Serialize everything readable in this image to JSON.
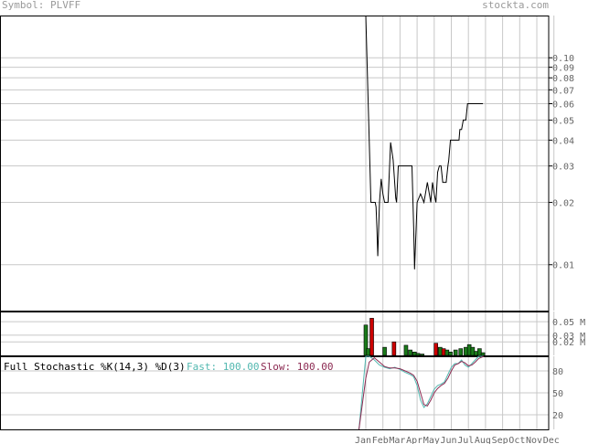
{
  "header": {
    "symbol_text": "Symbol: PLVFF",
    "site_text": "stockta.com"
  },
  "stochastic": {
    "title": "Full Stochastic %K(14,3) %D(3)",
    "fast_text": "Fast: 100.00",
    "slow_text": "Slow: 100.00"
  },
  "colors": {
    "price_line": "#000000",
    "grid": "#c8c8c8",
    "volume_up": "#1a7a1a",
    "volume_down": "#cc0000",
    "fast_line": "#52b8b0",
    "slow_line": "#8c2a52",
    "axis_text": "#666666"
  },
  "chart_data": [
    {
      "type": "line",
      "name_hint": "price",
      "y_scale": "log",
      "ylim": [
        0.006,
        0.16
      ],
      "y_ticks": [
        0.1,
        0.09,
        0.08,
        0.07,
        0.06,
        0.05,
        0.04,
        0.03,
        0.02,
        0.01
      ],
      "y_tick_labels": [
        "0.10",
        "0.09",
        "0.08",
        "0.07",
        "0.06",
        "0.05",
        "0.04",
        "0.03",
        "0.02",
        "0.01"
      ],
      "x_ticks": [
        "Jan",
        "Feb",
        "Mar",
        "Apr",
        "May",
        "Jun",
        "Jul",
        "Aug",
        "Sep",
        "Oct",
        "Nov",
        "Dec"
      ],
      "x_tick_labels": [
        "Jan",
        "Feb",
        "Mar",
        "Apr",
        "May",
        "Jun",
        "Jul",
        "Aug",
        "Sep",
        "Oct",
        "Nov",
        "Dec"
      ],
      "x_month_index": [
        0.0,
        0.3,
        0.4,
        0.5,
        0.55,
        0.6,
        0.65,
        0.7,
        0.8,
        0.9,
        1.0,
        1.1,
        1.2,
        1.3,
        1.45,
        1.6,
        1.75,
        1.8,
        1.9,
        2.0,
        2.1,
        2.2,
        2.3,
        2.4,
        2.5,
        2.6,
        2.7,
        2.8,
        2.85,
        3.0,
        3.2,
        3.4,
        3.6,
        3.8,
        3.9,
        4.0,
        4.1,
        4.2,
        4.3,
        4.35,
        4.4,
        4.5,
        4.6,
        4.7,
        4.8,
        4.85,
        4.95,
        5.05,
        5.15,
        5.2,
        5.3,
        5.45,
        5.5,
        5.6,
        5.7,
        5.75,
        5.85,
        5.95,
        6.05,
        6.15,
        6.25,
        6.35,
        6.45,
        6.55,
        6.65,
        6.75,
        6.85
      ],
      "values": [
        0.16,
        0.02,
        0.02,
        0.02,
        0.02,
        0.019,
        0.015,
        0.011,
        0.02,
        0.026,
        0.022,
        0.02,
        0.02,
        0.02,
        0.039,
        0.032,
        0.021,
        0.02,
        0.03,
        0.03,
        0.03,
        0.03,
        0.03,
        0.03,
        0.03,
        0.03,
        0.03,
        0.015,
        0.0095,
        0.02,
        0.022,
        0.02,
        0.025,
        0.02,
        0.025,
        0.022,
        0.02,
        0.028,
        0.03,
        0.03,
        0.03,
        0.025,
        0.025,
        0.025,
        0.03,
        0.032,
        0.04,
        0.04,
        0.04,
        0.04,
        0.04,
        0.04,
        0.045,
        0.045,
        0.05,
        0.05,
        0.05,
        0.06,
        0.06,
        0.06,
        0.06,
        0.06,
        0.06,
        0.06,
        0.06,
        0.06,
        0.06
      ]
    },
    {
      "type": "bar",
      "name_hint": "volume",
      "y_ticks": [
        0.05,
        0.03,
        0.02
      ],
      "y_tick_labels": [
        "0.05 M",
        "0.03 M",
        "0.02 M"
      ],
      "ylim": [
        0,
        0.065
      ],
      "x_month_index": [
        0.0,
        0.15,
        0.35,
        1.1,
        1.65,
        2.35,
        2.6,
        2.85,
        3.05,
        3.3,
        4.1,
        4.35,
        4.55,
        4.75,
        4.95,
        5.25,
        5.55,
        5.85,
        6.05,
        6.25,
        6.45,
        6.65,
        6.85
      ],
      "values": [
        0.045,
        0.01,
        0.055,
        0.012,
        0.02,
        0.015,
        0.008,
        0.005,
        0.003,
        0.002,
        0.018,
        0.012,
        0.01,
        0.008,
        0.005,
        0.008,
        0.01,
        0.012,
        0.016,
        0.012,
        0.006,
        0.01,
        0.004
      ],
      "direction": [
        "up",
        "up",
        "down",
        "up",
        "down",
        "up",
        "up",
        "up",
        "up",
        "up",
        "down",
        "up",
        "down",
        "up",
        "up",
        "up",
        "up",
        "up",
        "up",
        "up",
        "up",
        "up",
        "up"
      ]
    },
    {
      "type": "line",
      "name_hint": "stochastic",
      "ylim": [
        0,
        100
      ],
      "y_ticks": [
        80,
        50,
        20
      ],
      "y_tick_labels": [
        "80",
        "50",
        "20"
      ],
      "x_month_index": [
        -0.4,
        0.0,
        0.2,
        0.5,
        0.8,
        1.1,
        1.4,
        1.7,
        2.0,
        2.3,
        2.6,
        2.8,
        3.0,
        3.2,
        3.4,
        3.6,
        3.8,
        4.0,
        4.2,
        4.4,
        4.6,
        4.8,
        5.0,
        5.2,
        5.4,
        5.6,
        5.8,
        6.0,
        6.2,
        6.4,
        6.6,
        6.9
      ],
      "series": [
        {
          "name_hint": "fast",
          "values": [
            0,
            100,
            100,
            95,
            88,
            85,
            83,
            85,
            82,
            78,
            75,
            72,
            60,
            40,
            30,
            35,
            45,
            55,
            60,
            62,
            65,
            75,
            85,
            90,
            90,
            95,
            88,
            85,
            90,
            95,
            100,
            100
          ]
        },
        {
          "name_hint": "slow",
          "values": [
            0,
            70,
            92,
            98,
            92,
            86,
            84,
            84,
            83,
            80,
            77,
            74,
            66,
            50,
            34,
            32,
            40,
            50,
            56,
            60,
            63,
            70,
            80,
            88,
            90,
            93,
            91,
            87,
            88,
            92,
            97,
            100
          ]
        }
      ]
    }
  ]
}
